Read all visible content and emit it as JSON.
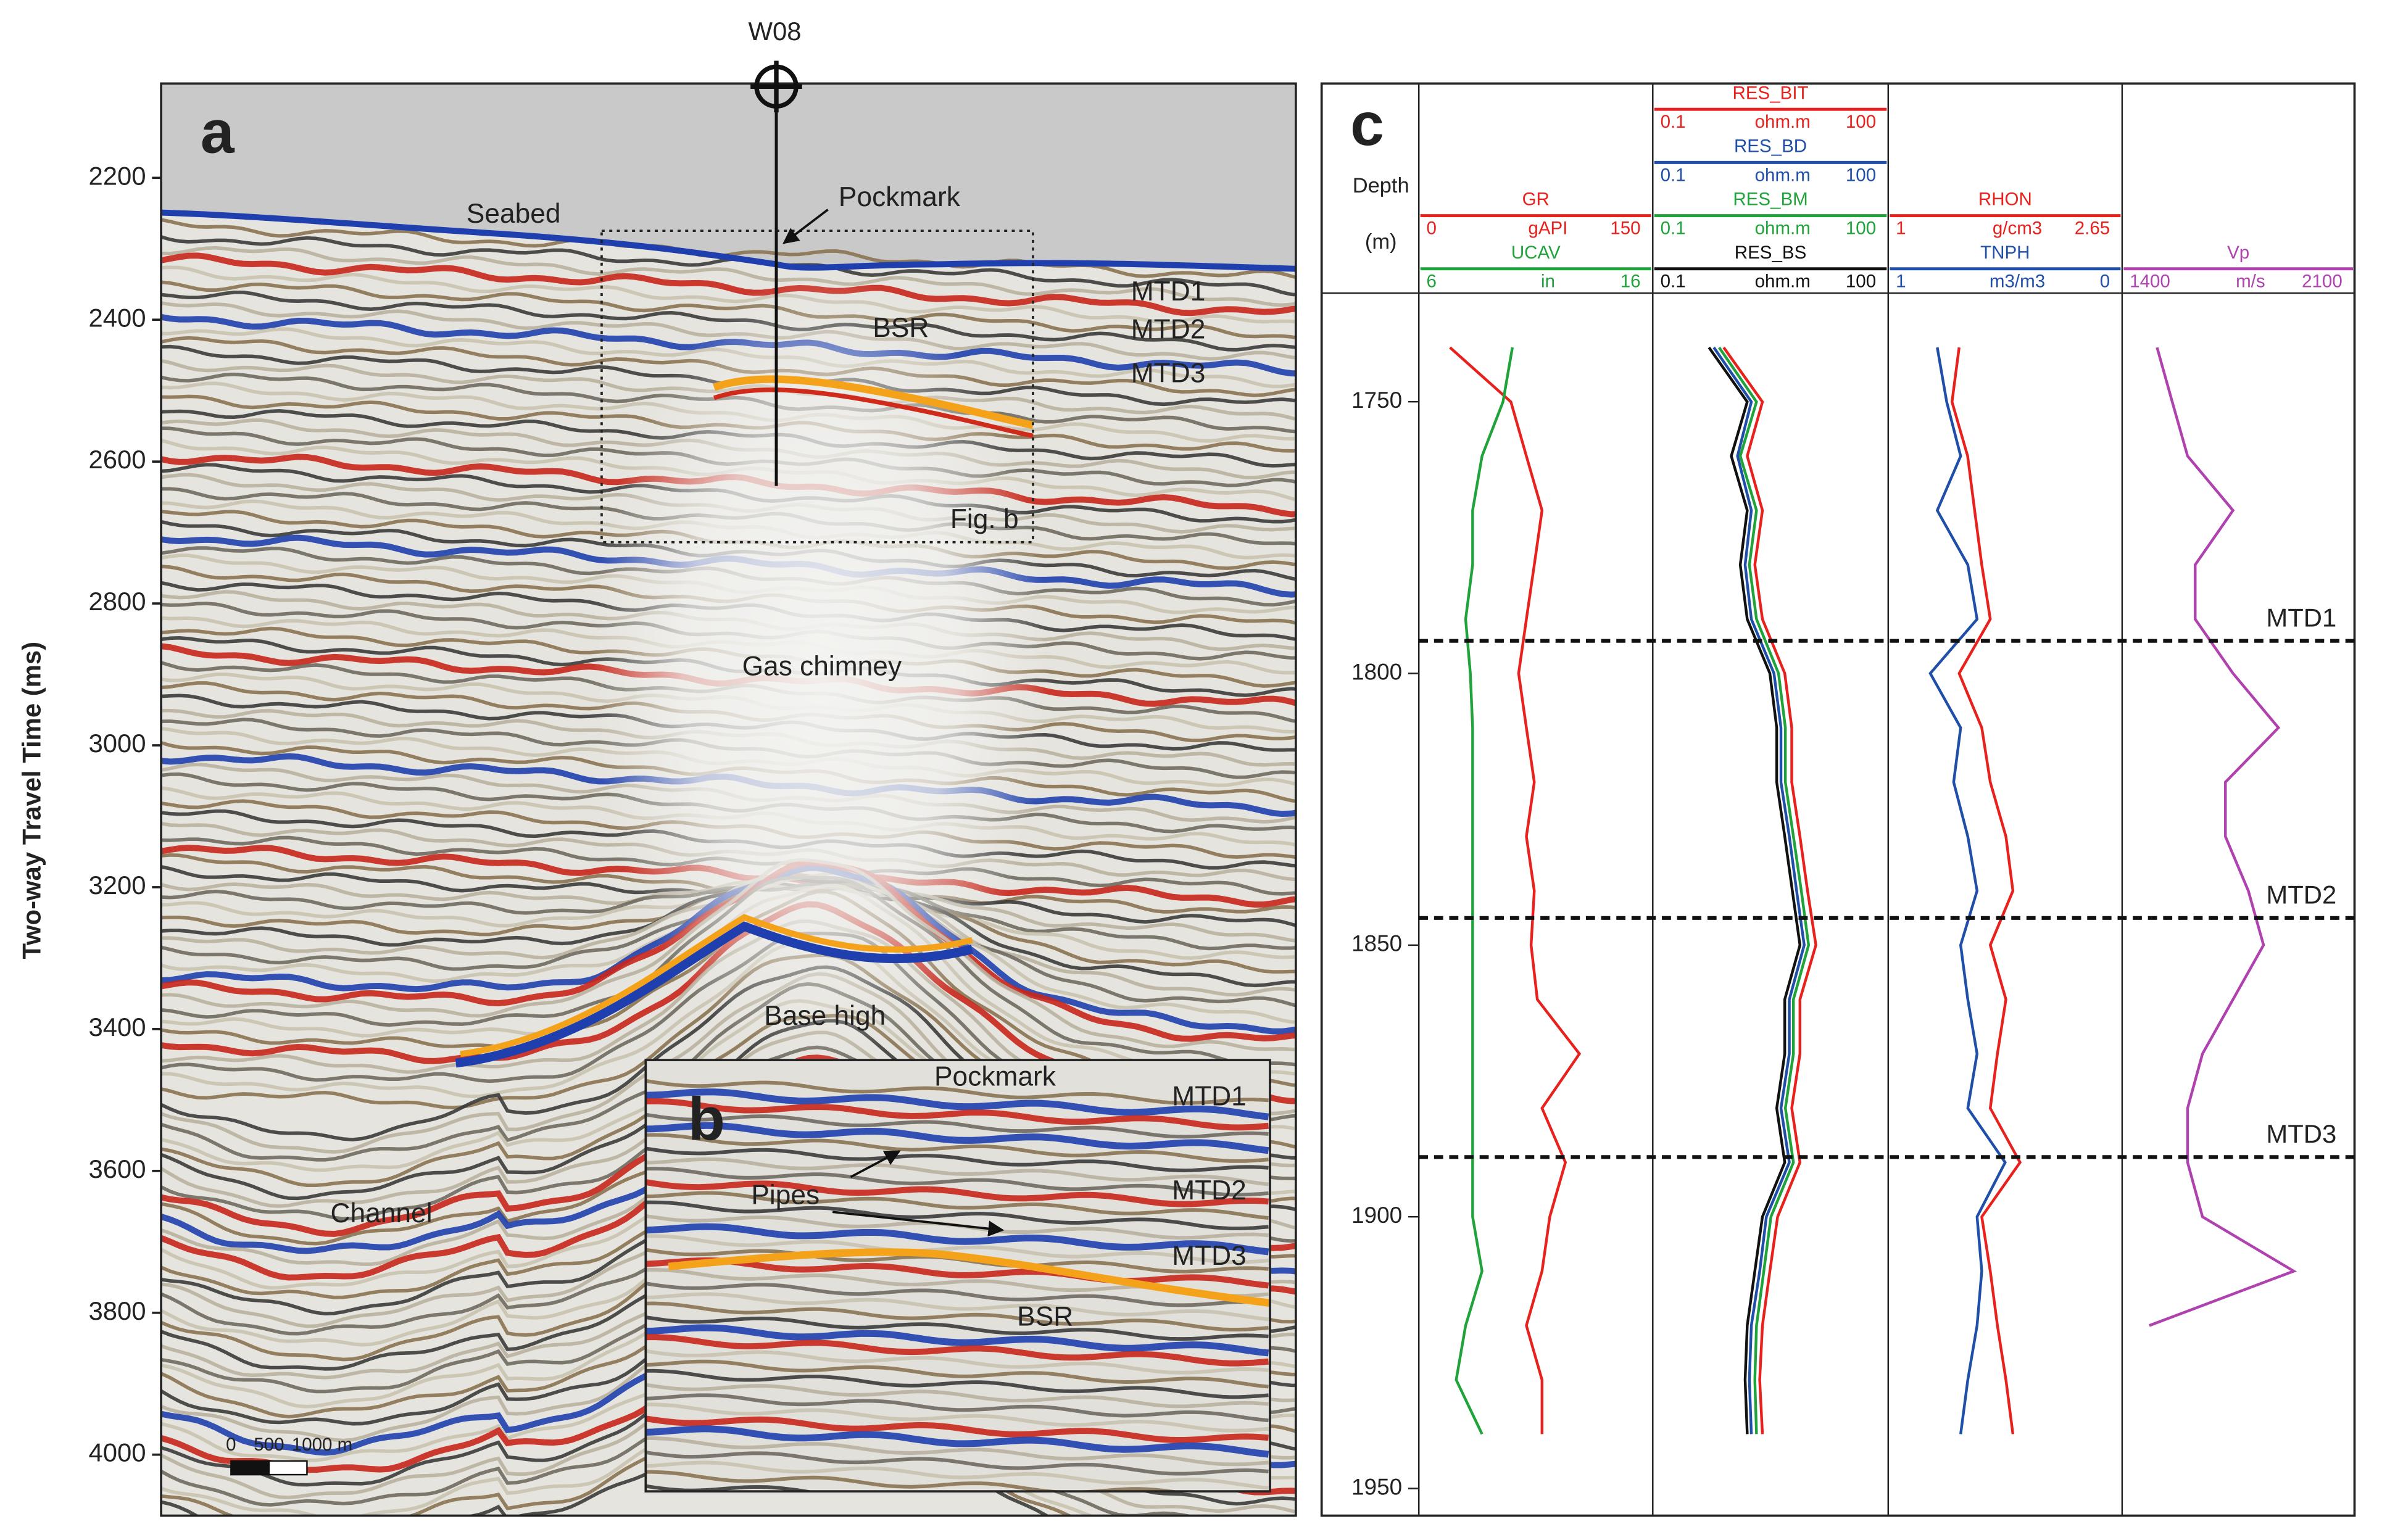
{
  "chart_data": [
    {
      "type": "seismic-section",
      "panel": "a",
      "ylabel": "Two-way Travel Time (ms)",
      "ylim": [
        2067,
        4086
      ],
      "yticks": [
        2200,
        2400,
        2600,
        2800,
        3000,
        3200,
        3400,
        3600,
        3800,
        4000
      ],
      "well": "W08",
      "annotations": [
        "Seabed",
        "Pockmark",
        "MTD1",
        "MTD2",
        "MTD3",
        "BSR",
        "Fig. b",
        "Gas chimney",
        "Base high",
        "Channel"
      ],
      "inset": {
        "panel": "b",
        "annotations": [
          "Pockmark",
          "MTD1",
          "MTD2",
          "MTD3",
          "Pipes",
          "BSR"
        ]
      },
      "scale_bar": [
        0,
        500,
        {
          "value": 1000,
          "label": "1000 m"
        }
      ]
    },
    {
      "type": "well-log",
      "panel": "c",
      "ylabel": "Depth",
      "yunit": "(m)",
      "ylim": [
        1730,
        1955
      ],
      "yticks": [
        1750,
        1800,
        1850,
        1900,
        1950
      ],
      "depths": [
        1740,
        1750,
        1760,
        1770,
        1780,
        1790,
        1800,
        1810,
        1820,
        1830,
        1840,
        1850,
        1860,
        1870,
        1880,
        1890,
        1900,
        1910,
        1920,
        1930,
        1940
      ],
      "markers": [
        {
          "label": "MTD1",
          "value": 1794
        },
        {
          "label": "MTD2",
          "value": 1845
        },
        {
          "label": "MTD3",
          "value": 1889
        }
      ],
      "tracks": [
        {
          "xscale": "linear",
          "series": [
            {
              "name": "GR",
              "unit": "gAPI",
              "color": "#e8211d",
              "xlim": [
                0,
                150
              ],
              "values": [
                20,
                59,
                69,
                79,
                74,
                69,
                64,
                69,
                74,
                69,
                74,
                72,
                76,
                103,
                79,
                94,
                84,
                79,
                69,
                79,
                79
              ]
            },
            {
              "name": "UCAV",
              "unit": "in",
              "color": "#1fa33a",
              "xlim": [
                6,
                16
              ],
              "values": [
                10.0,
                9.6,
                8.7,
                8.3,
                8.3,
                8.0,
                8.2,
                8.3,
                8.3,
                8.3,
                8.3,
                8.3,
                8.3,
                8.3,
                8.3,
                8.3,
                8.3,
                8.7,
                8.0,
                7.6,
                8.7
              ]
            }
          ]
        },
        {
          "xscale": "log",
          "series": [
            {
              "name": "RES_BIT",
              "unit": "ohm.m",
              "color": "#e8211d",
              "xlim": [
                0.1,
                100
              ],
              "values": [
                0.8,
                2.5,
                1.6,
                2.5,
                2.0,
                2.5,
                4.8,
                5.9,
                5.9,
                7.5,
                9.4,
                12,
                7.5,
                7.5,
                5.9,
                7.5,
                3.9,
                3.1,
                2.5,
                2.3,
                2.5
              ]
            },
            {
              "name": "RES_BD",
              "unit": "ohm.m",
              "color": "#1f4fa8",
              "xlim": [
                0.1,
                100
              ],
              "values": [
                0.6,
                1.8,
                1.2,
                1.8,
                1.5,
                1.8,
                3.5,
                4.3,
                4.3,
                5.5,
                6.8,
                8.5,
                5.5,
                5.5,
                4.3,
                5.5,
                2.8,
                2.3,
                1.8,
                1.7,
                1.8
              ]
            },
            {
              "name": "RES_BM",
              "unit": "ohm.m",
              "color": "#1fa33a",
              "xlim": [
                0.1,
                100
              ],
              "values": [
                0.7,
                2.1,
                1.3,
                2.1,
                1.7,
                2.1,
                4.0,
                4.9,
                4.9,
                6.2,
                7.8,
                9.7,
                6.2,
                6.2,
                4.9,
                6.2,
                3.2,
                2.6,
                2.1,
                2.0,
                2.1
              ]
            },
            {
              "name": "RES_BS",
              "unit": "ohm.m",
              "color": "#111111",
              "xlim": [
                0.1,
                100
              ],
              "values": [
                0.52,
                1.6,
                1.0,
                1.6,
                1.3,
                1.6,
                3.1,
                3.8,
                3.8,
                4.8,
                6.0,
                7.5,
                4.8,
                4.8,
                3.8,
                4.8,
                2.5,
                2.0,
                1.6,
                1.5,
                1.6
              ]
            }
          ]
        },
        {
          "xscale": "linear",
          "series": [
            {
              "name": "RHON",
              "unit": "g/cm3",
              "color": "#e8211d",
              "xlim": [
                1,
                2.65
              ],
              "values": [
                1.5,
                1.45,
                1.56,
                1.61,
                1.66,
                1.72,
                1.5,
                1.66,
                1.72,
                1.83,
                1.88,
                1.72,
                1.83,
                1.77,
                1.72,
                1.93,
                1.66,
                1.72,
                1.77,
                1.83,
                1.88
              ]
            },
            {
              "name": "TNPH",
              "unit": "m3/m3",
              "color": "#1f4fa8",
              "xlim": [
                1,
                0
              ],
              "values": [
                0.79,
                0.75,
                0.69,
                0.79,
                0.66,
                0.62,
                0.82,
                0.69,
                0.72,
                0.66,
                0.62,
                0.69,
                0.66,
                0.62,
                0.66,
                0.5,
                0.62,
                0.6,
                0.62,
                0.66,
                0.69
              ]
            }
          ]
        },
        {
          "xscale": "linear",
          "series": [
            {
              "name": "Vp",
              "unit": "m/s",
              "color": "#b042b0",
              "xlim": [
                1400,
                2100
              ],
              "values": [
                1505,
                1551,
                1597,
                1734,
                1620,
                1620,
                1734,
                1871,
                1711,
                1711,
                1780,
                1826,
                1734,
                1642,
                1597,
                1597,
                1642,
                1917,
                1482,
                null,
                null
              ]
            }
          ]
        }
      ]
    }
  ]
}
